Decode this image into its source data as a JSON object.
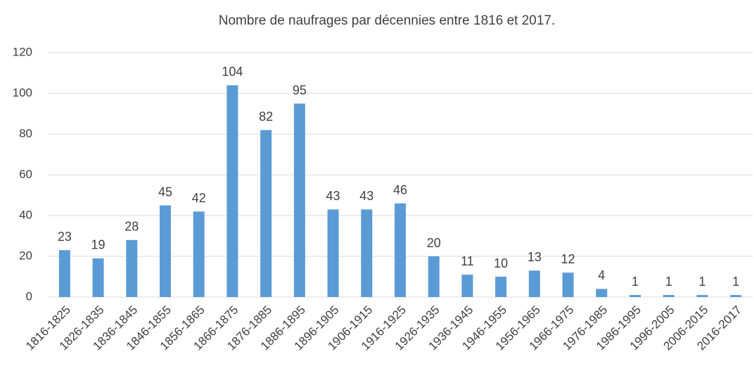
{
  "chart_data": {
    "type": "bar",
    "title": "Nombre de naufrages par décennies entre 1816 et 2017.",
    "categories": [
      "1816-1825",
      "1826-1835",
      "1836-1845",
      "1846-1855",
      "1856-1865",
      "1866-1875",
      "1876-1885",
      "1886-1895",
      "1896-1905",
      "1906-1915",
      "1916-1925",
      "1926-1935",
      "1936-1945",
      "1946-1955",
      "1956-1965",
      "1966-1975",
      "1976-1985",
      "1986-1995",
      "1996-2005",
      "2006-2015",
      "2016-2017"
    ],
    "values": [
      23,
      19,
      28,
      45,
      42,
      104,
      82,
      95,
      43,
      43,
      46,
      20,
      11,
      10,
      13,
      12,
      4,
      1,
      1,
      1,
      1
    ],
    "color": "#5b9bd5",
    "ylim": [
      0,
      120
    ],
    "yticks": [
      0,
      20,
      40,
      60,
      80,
      100,
      120
    ],
    "grid": true
  }
}
